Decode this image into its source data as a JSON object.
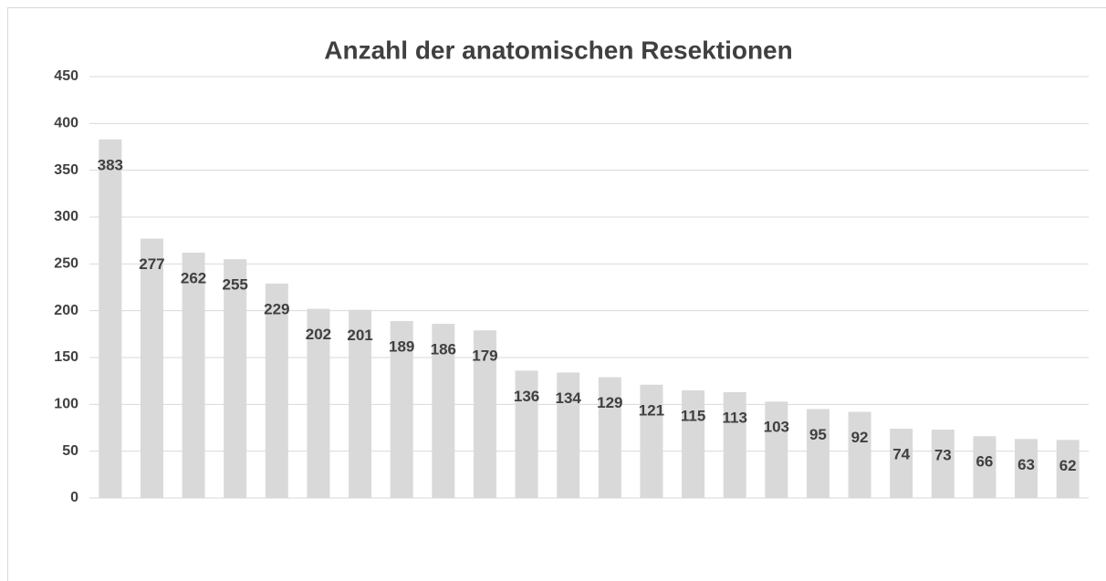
{
  "chart_data": {
    "type": "bar",
    "title": "Anzahl der anatomischen Resektionen",
    "categories": [
      null,
      null,
      null,
      null,
      null,
      null,
      null,
      null,
      null,
      null,
      null,
      null,
      null,
      null,
      null,
      null,
      null,
      null,
      null,
      null,
      null,
      null,
      null,
      null
    ],
    "values": [
      383,
      277,
      262,
      255,
      229,
      202,
      201,
      189,
      186,
      179,
      136,
      134,
      129,
      121,
      115,
      113,
      103,
      95,
      92,
      74,
      73,
      66,
      63,
      62
    ],
    "color": "#d9d9d9",
    "ylim": [
      0,
      450
    ],
    "yticks": [
      0,
      50,
      100,
      150,
      200,
      250,
      300,
      350,
      400,
      450
    ],
    "grid": true
  }
}
